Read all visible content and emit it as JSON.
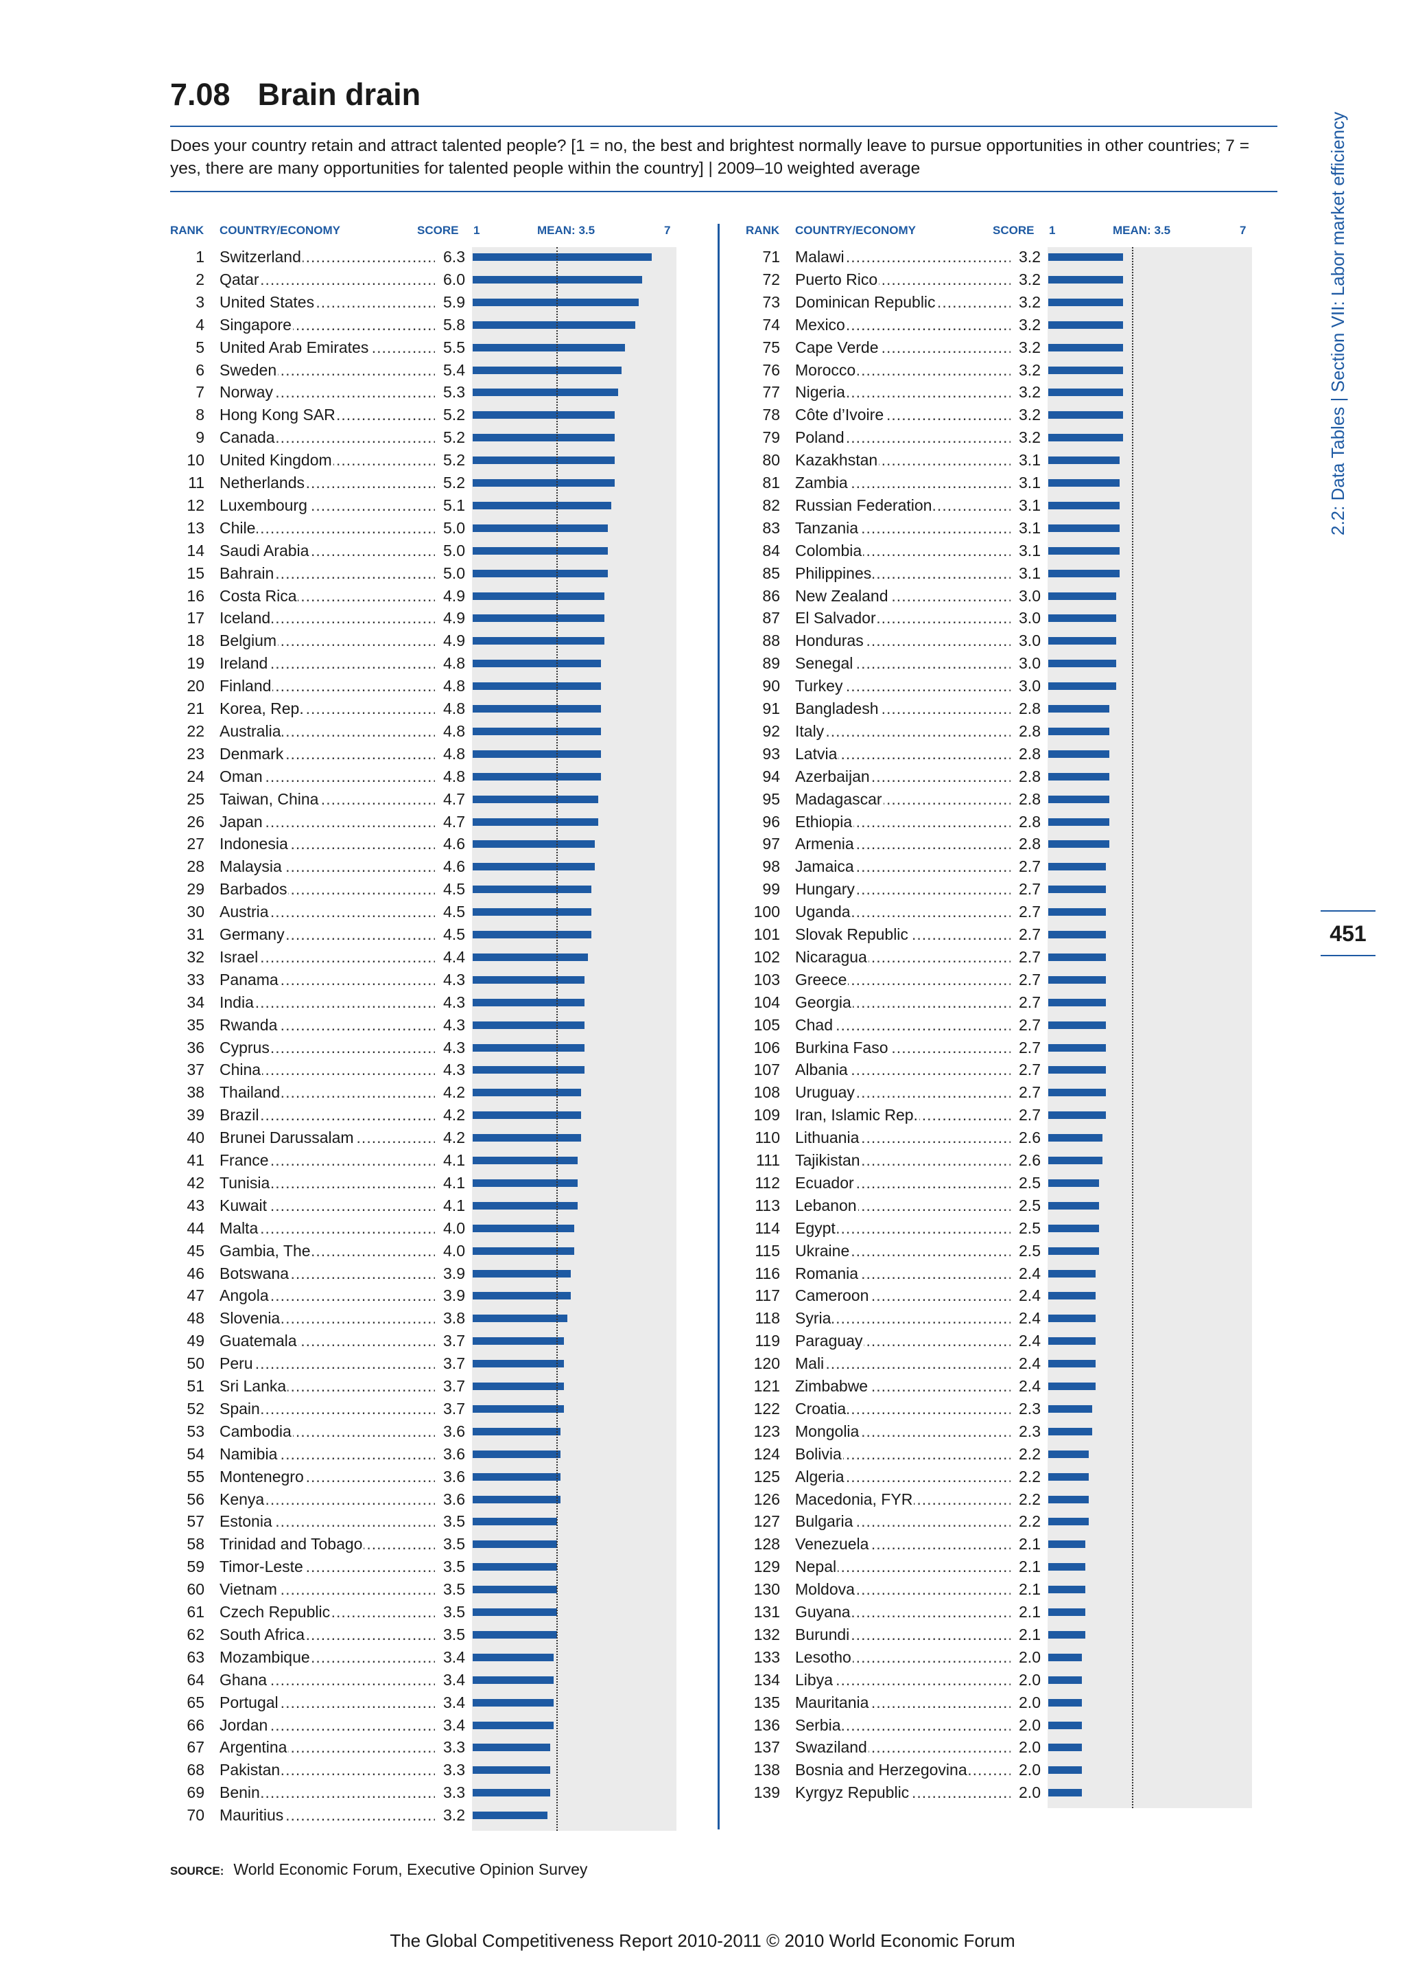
{
  "header": {
    "number": "7.08",
    "title": "Brain drain",
    "subtitle": "Does your country retain and attract talented people? [1 = no, the best and brightest normally leave to pursue opportunities in other countries; 7 = yes, there are many opportunities for talented people within the country]  |  2009–10 weighted average"
  },
  "columns": {
    "rank": "RANK",
    "country": "COUNTRY/ECONOMY",
    "score": "SCORE",
    "axis_min": "1",
    "mean": "MEAN: 3.5",
    "axis_max": "7"
  },
  "side": {
    "section": "2.2: Data Tables  |  Section VII: Labor market efficiency",
    "page_number": "451"
  },
  "source": {
    "label": "SOURCE:",
    "text": "World Economic Forum, Executive Opinion Survey"
  },
  "footer": "The Global Competitiveness Report 2010-2011 © 2010 World Economic Forum",
  "colors": {
    "accent": "#1e5aa3",
    "bar": "#1e5aa3",
    "panel_bg": "#ebebeb"
  },
  "chart_data": {
    "type": "bar",
    "orientation": "horizontal",
    "xlim": [
      1,
      7
    ],
    "mean": 3.5,
    "rows": [
      {
        "rank": "1",
        "country": "Switzerland",
        "score": "6.3"
      },
      {
        "rank": "2",
        "country": "Qatar",
        "score": "6.0"
      },
      {
        "rank": "3",
        "country": "United States",
        "score": "5.9"
      },
      {
        "rank": "4",
        "country": "Singapore",
        "score": "5.8"
      },
      {
        "rank": "5",
        "country": "United Arab Emirates",
        "score": "5.5"
      },
      {
        "rank": "6",
        "country": "Sweden",
        "score": "5.4"
      },
      {
        "rank": "7",
        "country": "Norway",
        "score": "5.3"
      },
      {
        "rank": "8",
        "country": "Hong Kong SAR",
        "score": "5.2"
      },
      {
        "rank": "9",
        "country": "Canada",
        "score": "5.2"
      },
      {
        "rank": "10",
        "country": "United Kingdom",
        "score": "5.2"
      },
      {
        "rank": "11",
        "country": "Netherlands",
        "score": "5.2"
      },
      {
        "rank": "12",
        "country": "Luxembourg",
        "score": "5.1"
      },
      {
        "rank": "13",
        "country": "Chile",
        "score": "5.0"
      },
      {
        "rank": "14",
        "country": "Saudi Arabia",
        "score": "5.0"
      },
      {
        "rank": "15",
        "country": "Bahrain",
        "score": "5.0"
      },
      {
        "rank": "16",
        "country": "Costa Rica",
        "score": "4.9"
      },
      {
        "rank": "17",
        "country": "Iceland",
        "score": "4.9"
      },
      {
        "rank": "18",
        "country": "Belgium",
        "score": "4.9"
      },
      {
        "rank": "19",
        "country": "Ireland",
        "score": "4.8"
      },
      {
        "rank": "20",
        "country": "Finland",
        "score": "4.8"
      },
      {
        "rank": "21",
        "country": "Korea, Rep.",
        "score": "4.8"
      },
      {
        "rank": "22",
        "country": "Australia",
        "score": "4.8"
      },
      {
        "rank": "23",
        "country": "Denmark",
        "score": "4.8"
      },
      {
        "rank": "24",
        "country": "Oman",
        "score": "4.8"
      },
      {
        "rank": "25",
        "country": "Taiwan, China",
        "score": "4.7"
      },
      {
        "rank": "26",
        "country": "Japan",
        "score": "4.7"
      },
      {
        "rank": "27",
        "country": "Indonesia",
        "score": "4.6"
      },
      {
        "rank": "28",
        "country": "Malaysia",
        "score": "4.6"
      },
      {
        "rank": "29",
        "country": "Barbados",
        "score": "4.5"
      },
      {
        "rank": "30",
        "country": "Austria",
        "score": "4.5"
      },
      {
        "rank": "31",
        "country": "Germany",
        "score": "4.5"
      },
      {
        "rank": "32",
        "country": "Israel",
        "score": "4.4"
      },
      {
        "rank": "33",
        "country": "Panama",
        "score": "4.3"
      },
      {
        "rank": "34",
        "country": "India",
        "score": "4.3"
      },
      {
        "rank": "35",
        "country": "Rwanda",
        "score": "4.3"
      },
      {
        "rank": "36",
        "country": "Cyprus",
        "score": "4.3"
      },
      {
        "rank": "37",
        "country": "China",
        "score": "4.3"
      },
      {
        "rank": "38",
        "country": "Thailand",
        "score": "4.2"
      },
      {
        "rank": "39",
        "country": "Brazil",
        "score": "4.2"
      },
      {
        "rank": "40",
        "country": "Brunei Darussalam",
        "score": "4.2"
      },
      {
        "rank": "41",
        "country": "France",
        "score": "4.1"
      },
      {
        "rank": "42",
        "country": "Tunisia",
        "score": "4.1"
      },
      {
        "rank": "43",
        "country": "Kuwait",
        "score": "4.1"
      },
      {
        "rank": "44",
        "country": "Malta",
        "score": "4.0"
      },
      {
        "rank": "45",
        "country": "Gambia, The",
        "score": "4.0"
      },
      {
        "rank": "46",
        "country": "Botswana",
        "score": "3.9"
      },
      {
        "rank": "47",
        "country": "Angola",
        "score": "3.9"
      },
      {
        "rank": "48",
        "country": "Slovenia",
        "score": "3.8"
      },
      {
        "rank": "49",
        "country": "Guatemala",
        "score": "3.7"
      },
      {
        "rank": "50",
        "country": "Peru",
        "score": "3.7"
      },
      {
        "rank": "51",
        "country": "Sri Lanka",
        "score": "3.7"
      },
      {
        "rank": "52",
        "country": "Spain",
        "score": "3.7"
      },
      {
        "rank": "53",
        "country": "Cambodia",
        "score": "3.6"
      },
      {
        "rank": "54",
        "country": "Namibia",
        "score": "3.6"
      },
      {
        "rank": "55",
        "country": "Montenegro",
        "score": "3.6"
      },
      {
        "rank": "56",
        "country": "Kenya",
        "score": "3.6"
      },
      {
        "rank": "57",
        "country": "Estonia",
        "score": "3.5"
      },
      {
        "rank": "58",
        "country": "Trinidad and Tobago",
        "score": "3.5"
      },
      {
        "rank": "59",
        "country": "Timor-Leste",
        "score": "3.5"
      },
      {
        "rank": "60",
        "country": "Vietnam",
        "score": "3.5"
      },
      {
        "rank": "61",
        "country": "Czech Republic",
        "score": "3.5"
      },
      {
        "rank": "62",
        "country": "South Africa",
        "score": "3.5"
      },
      {
        "rank": "63",
        "country": "Mozambique",
        "score": "3.4"
      },
      {
        "rank": "64",
        "country": "Ghana",
        "score": "3.4"
      },
      {
        "rank": "65",
        "country": "Portugal",
        "score": "3.4"
      },
      {
        "rank": "66",
        "country": "Jordan",
        "score": "3.4"
      },
      {
        "rank": "67",
        "country": "Argentina",
        "score": "3.3"
      },
      {
        "rank": "68",
        "country": "Pakistan",
        "score": "3.3"
      },
      {
        "rank": "69",
        "country": "Benin",
        "score": "3.3"
      },
      {
        "rank": "70",
        "country": "Mauritius",
        "score": "3.2"
      },
      {
        "rank": "71",
        "country": "Malawi",
        "score": "3.2"
      },
      {
        "rank": "72",
        "country": "Puerto Rico",
        "score": "3.2"
      },
      {
        "rank": "73",
        "country": "Dominican Republic",
        "score": "3.2"
      },
      {
        "rank": "74",
        "country": "Mexico",
        "score": "3.2"
      },
      {
        "rank": "75",
        "country": "Cape Verde",
        "score": "3.2"
      },
      {
        "rank": "76",
        "country": "Morocco",
        "score": "3.2"
      },
      {
        "rank": "77",
        "country": "Nigeria",
        "score": "3.2"
      },
      {
        "rank": "78",
        "country": "Côte d’Ivoire",
        "score": "3.2"
      },
      {
        "rank": "79",
        "country": "Poland",
        "score": "3.2"
      },
      {
        "rank": "80",
        "country": "Kazakhstan",
        "score": "3.1"
      },
      {
        "rank": "81",
        "country": "Zambia",
        "score": "3.1"
      },
      {
        "rank": "82",
        "country": "Russian Federation",
        "score": "3.1"
      },
      {
        "rank": "83",
        "country": "Tanzania",
        "score": "3.1"
      },
      {
        "rank": "84",
        "country": "Colombia",
        "score": "3.1"
      },
      {
        "rank": "85",
        "country": "Philippines",
        "score": "3.1"
      },
      {
        "rank": "86",
        "country": "New Zealand",
        "score": "3.0"
      },
      {
        "rank": "87",
        "country": "El Salvador",
        "score": "3.0"
      },
      {
        "rank": "88",
        "country": "Honduras",
        "score": "3.0"
      },
      {
        "rank": "89",
        "country": "Senegal",
        "score": "3.0"
      },
      {
        "rank": "90",
        "country": "Turkey",
        "score": "3.0"
      },
      {
        "rank": "91",
        "country": "Bangladesh",
        "score": "2.8"
      },
      {
        "rank": "92",
        "country": "Italy",
        "score": "2.8"
      },
      {
        "rank": "93",
        "country": "Latvia",
        "score": "2.8"
      },
      {
        "rank": "94",
        "country": "Azerbaijan",
        "score": "2.8"
      },
      {
        "rank": "95",
        "country": "Madagascar",
        "score": "2.8"
      },
      {
        "rank": "96",
        "country": "Ethiopia",
        "score": "2.8"
      },
      {
        "rank": "97",
        "country": "Armenia",
        "score": "2.8"
      },
      {
        "rank": "98",
        "country": "Jamaica",
        "score": "2.7"
      },
      {
        "rank": "99",
        "country": "Hungary",
        "score": "2.7"
      },
      {
        "rank": "100",
        "country": "Uganda",
        "score": "2.7"
      },
      {
        "rank": "101",
        "country": "Slovak Republic",
        "score": "2.7"
      },
      {
        "rank": "102",
        "country": "Nicaragua",
        "score": "2.7"
      },
      {
        "rank": "103",
        "country": "Greece",
        "score": "2.7"
      },
      {
        "rank": "104",
        "country": "Georgia",
        "score": "2.7"
      },
      {
        "rank": "105",
        "country": "Chad",
        "score": "2.7"
      },
      {
        "rank": "106",
        "country": "Burkina Faso",
        "score": "2.7"
      },
      {
        "rank": "107",
        "country": "Albania",
        "score": "2.7"
      },
      {
        "rank": "108",
        "country": "Uruguay",
        "score": "2.7"
      },
      {
        "rank": "109",
        "country": "Iran, Islamic Rep.",
        "score": "2.7"
      },
      {
        "rank": "110",
        "country": "Lithuania",
        "score": "2.6"
      },
      {
        "rank": "111",
        "country": "Tajikistan",
        "score": "2.6"
      },
      {
        "rank": "112",
        "country": "Ecuador",
        "score": "2.5"
      },
      {
        "rank": "113",
        "country": "Lebanon",
        "score": "2.5"
      },
      {
        "rank": "114",
        "country": "Egypt",
        "score": "2.5"
      },
      {
        "rank": "115",
        "country": "Ukraine",
        "score": "2.5"
      },
      {
        "rank": "116",
        "country": "Romania",
        "score": "2.4"
      },
      {
        "rank": "117",
        "country": "Cameroon",
        "score": "2.4"
      },
      {
        "rank": "118",
        "country": "Syria",
        "score": "2.4"
      },
      {
        "rank": "119",
        "country": "Paraguay",
        "score": "2.4"
      },
      {
        "rank": "120",
        "country": "Mali",
        "score": "2.4"
      },
      {
        "rank": "121",
        "country": "Zimbabwe",
        "score": "2.4"
      },
      {
        "rank": "122",
        "country": "Croatia",
        "score": "2.3"
      },
      {
        "rank": "123",
        "country": "Mongolia",
        "score": "2.3"
      },
      {
        "rank": "124",
        "country": "Bolivia",
        "score": "2.2"
      },
      {
        "rank": "125",
        "country": "Algeria",
        "score": "2.2"
      },
      {
        "rank": "126",
        "country": "Macedonia, FYR",
        "score": "2.2"
      },
      {
        "rank": "127",
        "country": "Bulgaria",
        "score": "2.2"
      },
      {
        "rank": "128",
        "country": "Venezuela",
        "score": "2.1"
      },
      {
        "rank": "129",
        "country": "Nepal",
        "score": "2.1"
      },
      {
        "rank": "130",
        "country": "Moldova",
        "score": "2.1"
      },
      {
        "rank": "131",
        "country": "Guyana",
        "score": "2.1"
      },
      {
        "rank": "132",
        "country": "Burundi",
        "score": "2.1"
      },
      {
        "rank": "133",
        "country": "Lesotho",
        "score": "2.0"
      },
      {
        "rank": "134",
        "country": "Libya",
        "score": "2.0"
      },
      {
        "rank": "135",
        "country": "Mauritania",
        "score": "2.0"
      },
      {
        "rank": "136",
        "country": "Serbia",
        "score": "2.0"
      },
      {
        "rank": "137",
        "country": "Swaziland",
        "score": "2.0"
      },
      {
        "rank": "138",
        "country": "Bosnia and Herzegovina",
        "score": "2.0"
      },
      {
        "rank": "139",
        "country": "Kyrgyz Republic",
        "score": "2.0"
      }
    ]
  }
}
